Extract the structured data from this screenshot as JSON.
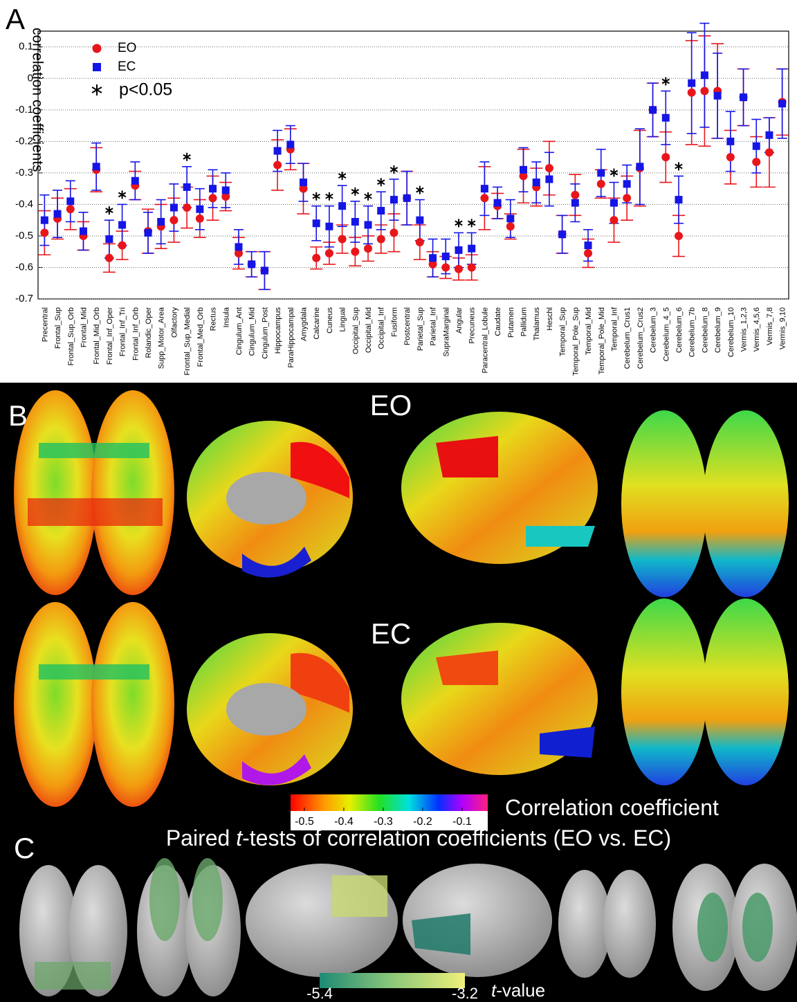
{
  "chart_data": {
    "type": "errorbar",
    "panel_label": "A",
    "y_label": "correlation coefficients",
    "categories": [
      "Precentral",
      "Frontal_Sup",
      "Frontal_Sup_Orb",
      "Frontal_Mid",
      "Frontal_Mid_Orb",
      "Frontal_Inf_Oper",
      "Frontal_Inf_Tri",
      "Frontal_Inf_Orb",
      "Rolandic_Oper",
      "Supp_Motor_Area",
      "Olfactory",
      "Frontal_Sup_Medial",
      "Frontal_Med_Orb",
      "Rectus",
      "Insula",
      "Cingulum_Ant",
      "Cingulum_Mid",
      "Cingulum_Post",
      "Hippocampus",
      "ParaHippocampal",
      "Amygdala",
      "Calcarine",
      "Cuneus",
      "Lingual",
      "Occipital_Sup",
      "Occipital_Mid",
      "Occipital_Inf",
      "Fusiform",
      "Postcentral",
      "Parietal_Sup",
      "Parietal_Inf",
      "SupraMarginal",
      "Angular",
      "Precuneus",
      "Paracentral_Lobule",
      "Caudate",
      "Putamen",
      "Pallidum",
      "Thalamus",
      "Heschl",
      "Temporal_Sup",
      "Temporal_Pole_Sup",
      "Temporal_Mid",
      "Temporal_Pole_Mid",
      "Temporal_Inf",
      "Cerebelum_Crus1",
      "Cerebelum_Crus2",
      "Cerebelum_3",
      "Cerebelum_4_5",
      "Cerebelum_6",
      "Cerebelum_7b",
      "Cerebelum_8",
      "Cerebelum_9",
      "Cerebelum_10",
      "Vermis_1,2,3",
      "Vermis_4,5,6",
      "Vermis_7,8",
      "Vermis_9,10"
    ],
    "series": [
      {
        "name": "EO",
        "color": "#e8161b",
        "marker": "circle",
        "values": [
          -0.49,
          -0.445,
          -0.415,
          -0.5,
          -0.29,
          -0.57,
          -0.53,
          -0.34,
          -0.485,
          -0.47,
          -0.45,
          -0.41,
          -0.445,
          -0.38,
          -0.375,
          -0.555,
          -0.59,
          -0.61,
          -0.275,
          -0.225,
          -0.35,
          -0.57,
          -0.555,
          -0.51,
          -0.55,
          -0.54,
          -0.51,
          -0.49,
          -0.38,
          -0.52,
          -0.59,
          -0.6,
          -0.605,
          -0.6,
          -0.38,
          -0.405,
          -0.47,
          -0.31,
          -0.345,
          -0.285,
          -0.495,
          -0.37,
          -0.555,
          -0.335,
          -0.45,
          -0.38,
          -0.285,
          -0.1,
          -0.25,
          -0.5,
          -0.045,
          -0.04,
          -0.04,
          -0.25,
          -0.06,
          -0.265,
          -0.235,
          -0.075
        ],
        "errors": [
          0.07,
          0.065,
          0.065,
          0.045,
          0.07,
          0.045,
          0.045,
          0.045,
          0.07,
          0.07,
          0.07,
          0.065,
          0.06,
          0.07,
          0.045,
          0.05,
          0.04,
          0.06,
          0.08,
          0.065,
          0.08,
          0.035,
          0.035,
          0.045,
          0.045,
          0.04,
          0.045,
          0.06,
          0.085,
          0.055,
          0.04,
          0.035,
          0.035,
          0.04,
          0.1,
          0.04,
          0.04,
          0.085,
          0.06,
          0.085,
          0.06,
          0.065,
          0.045,
          0.045,
          0.07,
          0.07,
          0.12,
          0.085,
          0.08,
          0.065,
          0.165,
          0.175,
          0.15,
          0.085,
          0.09,
          0.08,
          0.11,
          0.105
        ]
      },
      {
        "name": "EC",
        "color": "#1515e6",
        "marker": "square",
        "values": [
          -0.45,
          -0.43,
          -0.39,
          -0.485,
          -0.28,
          -0.51,
          -0.465,
          -0.325,
          -0.49,
          -0.455,
          -0.41,
          -0.345,
          -0.415,
          -0.35,
          -0.355,
          -0.535,
          -0.59,
          -0.61,
          -0.23,
          -0.21,
          -0.33,
          -0.46,
          -0.47,
          -0.405,
          -0.455,
          -0.465,
          -0.42,
          -0.385,
          -0.38,
          -0.45,
          -0.57,
          -0.565,
          -0.545,
          -0.54,
          -0.35,
          -0.395,
          -0.445,
          -0.29,
          -0.33,
          -0.32,
          -0.495,
          -0.395,
          -0.53,
          -0.3,
          -0.395,
          -0.335,
          -0.28,
          -0.1,
          -0.125,
          -0.385,
          -0.015,
          0.01,
          -0.055,
          -0.2,
          -0.06,
          -0.215,
          -0.18,
          -0.08
        ],
        "errors": [
          0.08,
          0.075,
          0.065,
          0.06,
          0.075,
          0.06,
          0.065,
          0.06,
          0.065,
          0.07,
          0.075,
          0.065,
          0.065,
          0.06,
          0.055,
          0.055,
          0.04,
          0.06,
          0.065,
          0.06,
          0.06,
          0.055,
          0.065,
          0.065,
          0.065,
          0.06,
          0.06,
          0.065,
          0.085,
          0.065,
          0.06,
          0.055,
          0.055,
          0.05,
          0.085,
          0.05,
          0.06,
          0.07,
          0.065,
          0.085,
          0.06,
          0.06,
          0.05,
          0.075,
          0.065,
          0.06,
          0.12,
          0.085,
          0.085,
          0.075,
          0.16,
          0.165,
          0.135,
          0.095,
          0.09,
          0.085,
          0.055,
          0.11
        ]
      }
    ],
    "significance_label": "p<0.05",
    "significant": [
      false,
      false,
      false,
      false,
      false,
      true,
      true,
      false,
      false,
      false,
      false,
      true,
      false,
      false,
      false,
      false,
      false,
      false,
      false,
      false,
      false,
      true,
      true,
      true,
      true,
      true,
      true,
      true,
      false,
      true,
      false,
      false,
      true,
      true,
      false,
      false,
      false,
      false,
      false,
      false,
      false,
      false,
      false,
      false,
      true,
      false,
      false,
      false,
      true,
      true,
      false,
      false,
      false,
      false,
      false,
      false,
      false,
      false
    ],
    "ylim": [
      -0.7,
      0.15
    ],
    "yticks": [
      0.1,
      0,
      -0.1,
      -0.2,
      -0.3,
      -0.4,
      -0.5,
      -0.6,
      -0.7
    ],
    "grid": true,
    "legend": "upper left"
  },
  "panel_b": {
    "label": "B",
    "rows": [
      "EO",
      "EC"
    ],
    "colorbar": {
      "title": "Correlation coefficient",
      "lim": [
        -0.535,
        -0.035
      ],
      "ticks": [
        -0.5,
        -0.4,
        -0.3,
        -0.2,
        -0.1
      ]
    }
  },
  "panel_c": {
    "label": "C",
    "title_parts": [
      "Paired ",
      "t",
      "-tests of correlation coefficients (EO vs. EC)"
    ],
    "colorbar": {
      "label_parts": [
        "t",
        "-value"
      ],
      "lim": [
        -5.4,
        -3.2
      ],
      "ticks": [
        -5.4,
        -3.2
      ]
    }
  }
}
